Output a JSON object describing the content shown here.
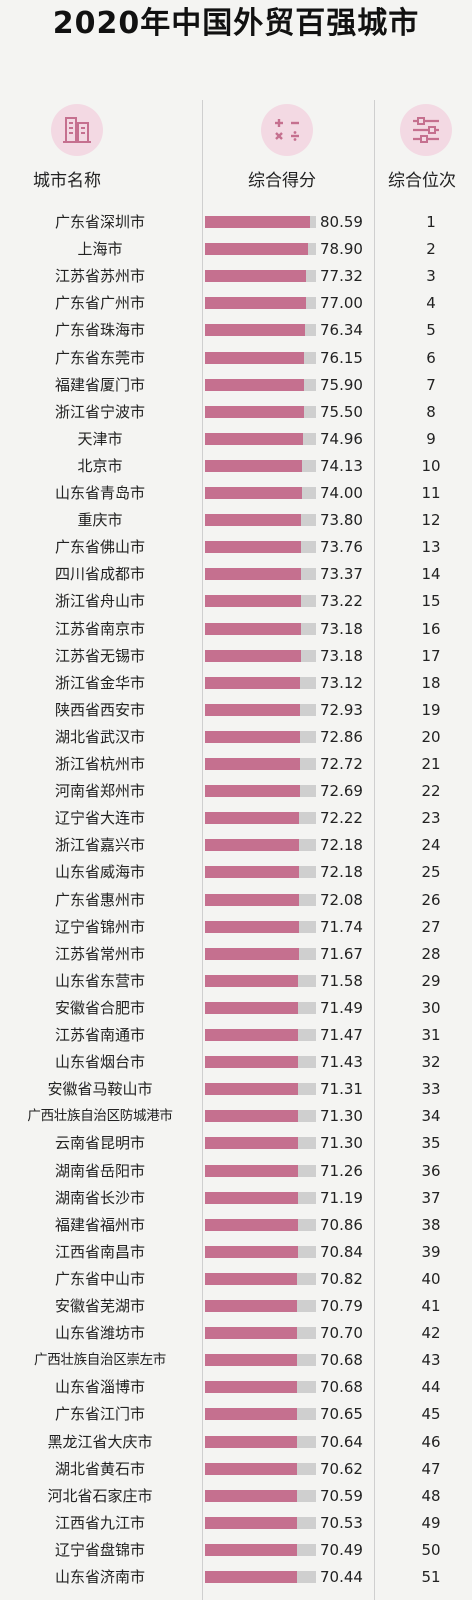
{
  "title": "2020年中国外贸百强城市",
  "headers": {
    "city": "城市名称",
    "score": "综合得分",
    "rank": "综合位次"
  },
  "colors": {
    "bar": "#c5708f",
    "track": "#cfcfcf",
    "icon_bg": "#f3d9e3",
    "icon_fg": "#c5708f"
  },
  "icons": [
    "buildings-icon",
    "calculator-icon",
    "sliders-icon"
  ],
  "chart_data": {
    "type": "bar",
    "orientation": "horizontal",
    "xlim": [
      0,
      85
    ],
    "categories": [
      "广东省深圳市",
      "上海市",
      "江苏省苏州市",
      "广东省广州市",
      "广东省珠海市",
      "广东省东莞市",
      "福建省厦门市",
      "浙江省宁波市",
      "天津市",
      "北京市",
      "山东省青岛市",
      "重庆市",
      "广东省佛山市",
      "四川省成都市",
      "浙江省舟山市",
      "江苏省南京市",
      "江苏省无锡市",
      "浙江省金华市",
      "陕西省西安市",
      "湖北省武汉市",
      "浙江省杭州市",
      "河南省郑州市",
      "辽宁省大连市",
      "浙江省嘉兴市",
      "山东省威海市",
      "广东省惠州市",
      "辽宁省锦州市",
      "江苏省常州市",
      "山东省东营市",
      "安徽省合肥市",
      "江苏省南通市",
      "山东省烟台市",
      "安徽省马鞍山市",
      "广西壮族自治区防城港市",
      "云南省昆明市",
      "湖南省岳阳市",
      "湖南省长沙市",
      "福建省福州市",
      "江西省南昌市",
      "广东省中山市",
      "安徽省芜湖市",
      "山东省潍坊市",
      "广西壮族自治区崇左市",
      "山东省淄博市",
      "广东省江门市",
      "黑龙江省大庆市",
      "湖北省黄石市",
      "河北省石家庄市",
      "江西省九江市",
      "辽宁省盘锦市",
      "山东省济南市"
    ],
    "values": [
      "80.59",
      "78.90",
      "77.32",
      "77.00",
      "76.34",
      "76.15",
      "75.90",
      "75.50",
      "74.96",
      "74.13",
      "74.00",
      "73.80",
      "73.76",
      "73.37",
      "73.22",
      "73.18",
      "73.18",
      "73.12",
      "72.93",
      "72.86",
      "72.72",
      "72.69",
      "72.22",
      "72.18",
      "72.18",
      "72.08",
      "71.74",
      "71.67",
      "71.58",
      "71.49",
      "71.47",
      "71.43",
      "71.31",
      "71.30",
      "71.30",
      "71.26",
      "71.19",
      "70.86",
      "70.84",
      "70.82",
      "70.79",
      "70.70",
      "70.68",
      "70.68",
      "70.65",
      "70.64",
      "70.62",
      "70.59",
      "70.53",
      "70.49",
      "70.44"
    ],
    "ranks": [
      "1",
      "2",
      "3",
      "4",
      "5",
      "6",
      "7",
      "8",
      "9",
      "10",
      "11",
      "12",
      "13",
      "14",
      "15",
      "16",
      "17",
      "18",
      "19",
      "20",
      "21",
      "22",
      "23",
      "24",
      "25",
      "26",
      "27",
      "28",
      "29",
      "30",
      "31",
      "32",
      "33",
      "34",
      "35",
      "36",
      "37",
      "38",
      "39",
      "40",
      "41",
      "42",
      "43",
      "44",
      "45",
      "46",
      "47",
      "48",
      "49",
      "50",
      "51"
    ]
  }
}
